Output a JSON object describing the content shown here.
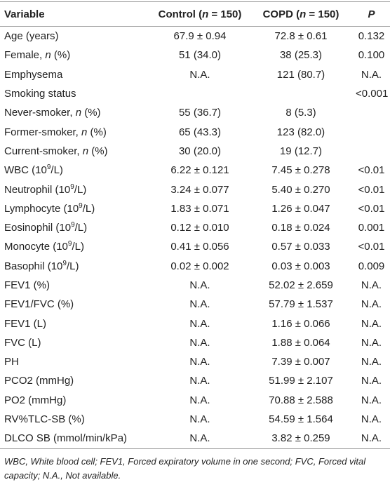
{
  "table": {
    "header": [
      "Variable",
      [
        "Control (",
        {
          "text": "n",
          "style": "italic"
        },
        " = 150)"
      ],
      [
        "COPD (",
        {
          "text": "n",
          "style": "italic"
        },
        " = 150)"
      ],
      {
        "text": "P",
        "style": "italic"
      }
    ],
    "rows": [
      [
        "Age (years)",
        "67.9 ± 0.94",
        "72.8 ± 0.61",
        "0.132"
      ],
      [
        [
          "Female, ",
          {
            "text": "n",
            "style": "italic"
          },
          " (%)"
        ],
        "51 (34.0)",
        "38 (25.3)",
        "0.100"
      ],
      [
        "Emphysema",
        "N.A.",
        "121 (80.7)",
        "N.A."
      ],
      [
        "Smoking status",
        null,
        null,
        "<0.001"
      ],
      [
        [
          "Never-smoker, ",
          {
            "text": "n",
            "style": "italic"
          },
          " (%)"
        ],
        "55 (36.7)",
        "8 (5.3)",
        null
      ],
      [
        [
          "Former-smoker, ",
          {
            "text": "n",
            "style": "italic"
          },
          " (%)"
        ],
        "65 (43.3)",
        "123 (82.0)",
        null
      ],
      [
        [
          "Current-smoker, ",
          {
            "text": "n",
            "style": "italic"
          },
          " (%)"
        ],
        "30 (20.0)",
        "19 (12.7)",
        null
      ],
      [
        [
          "WBC (10",
          {
            "text": "9",
            "style": "sup"
          },
          "/L)"
        ],
        "6.22 ± 0.121",
        "7.45 ± 0.278",
        "<0.01"
      ],
      [
        [
          "Neutrophil (10",
          {
            "text": "9",
            "style": "sup"
          },
          "/L)"
        ],
        "3.24 ± 0.077",
        "5.40 ± 0.270",
        "<0.01"
      ],
      [
        [
          "Lymphocyte (10",
          {
            "text": "9",
            "style": "sup"
          },
          "/L)"
        ],
        "1.83 ± 0.071",
        "1.26 ± 0.047",
        "<0.01"
      ],
      [
        [
          "Eosinophil (10",
          {
            "text": "9",
            "style": "sup"
          },
          "/L)"
        ],
        "0.12 ± 0.010",
        "0.18 ± 0.024",
        "0.001"
      ],
      [
        [
          "Monocyte (10",
          {
            "text": "9",
            "style": "sup"
          },
          "/L)"
        ],
        "0.41 ± 0.056",
        "0.57 ± 0.033",
        "<0.01"
      ],
      [
        [
          "Basophil (10",
          {
            "text": "9",
            "style": "sup"
          },
          "/L)"
        ],
        "0.02 ± 0.002",
        "0.03 ± 0.003",
        "0.009"
      ],
      [
        "FEV1 (%)",
        "N.A.",
        "52.02 ± 2.659",
        "N.A."
      ],
      [
        "FEV1/FVC (%)",
        "N.A.",
        "57.79 ± 1.537",
        "N.A."
      ],
      [
        "FEV1 (L)",
        "N.A.",
        "1.16 ± 0.066",
        "N.A."
      ],
      [
        "FVC (L)",
        "N.A.",
        "1.88 ± 0.064",
        "N.A."
      ],
      [
        "PH",
        "N.A.",
        "7.39 ± 0.007",
        "N.A."
      ],
      [
        "PCO2 (mmHg)",
        "N.A.",
        "51.99 ± 2.107",
        "N.A."
      ],
      [
        "PO2 (mmHg)",
        "N.A.",
        "70.88 ± 2.588",
        "N.A."
      ],
      [
        "RV%TLC-SB (%)",
        "N.A.",
        "54.59 ± 1.564",
        "N.A."
      ],
      [
        "DLCO SB (mmol/min/kPa)",
        "N.A.",
        "3.82 ± 0.259",
        "N.A."
      ]
    ],
    "footnote": "WBC, White blood cell; FEV1, Forced expiratory volume in one second; FVC, Forced vital capacity; N.A., Not available."
  }
}
